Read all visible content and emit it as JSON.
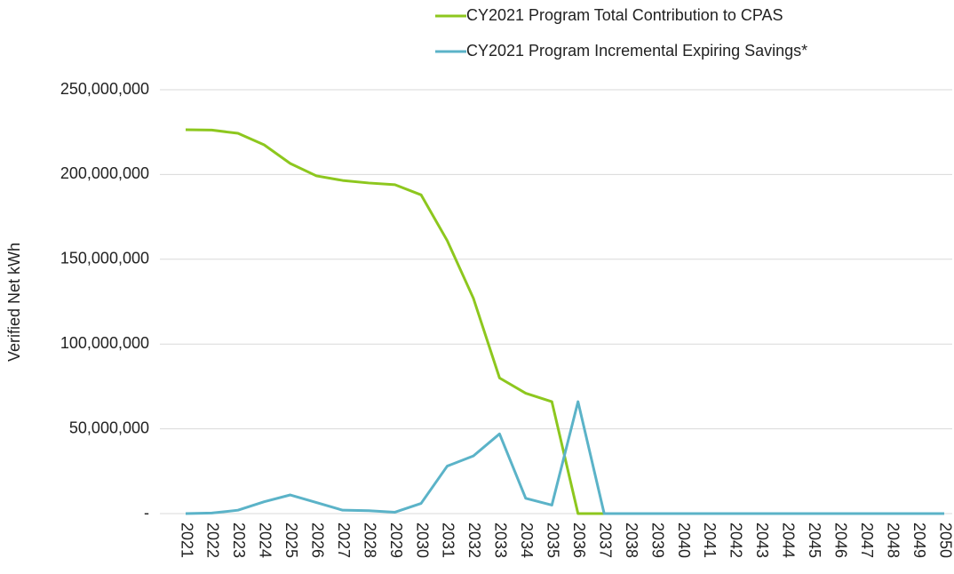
{
  "chart_data": {
    "type": "line",
    "y_label": "Verified Net kWh",
    "categories": [
      "2021",
      "2022",
      "2023",
      "2024",
      "2025",
      "2026",
      "2027",
      "2028",
      "2029",
      "2030",
      "2031",
      "2032",
      "2033",
      "2034",
      "2035",
      "2036",
      "2037",
      "2038",
      "2039",
      "2040",
      "2041",
      "2042",
      "2043",
      "2044",
      "2045",
      "2046",
      "2047",
      "2048",
      "2049",
      "2050"
    ],
    "series": [
      {
        "name": "CY2021 Program Total Contribution to CPAS",
        "color": "#8dc71e",
        "values": [
          226400000,
          226200000,
          224300000,
          217500000,
          206500000,
          199200000,
          196500000,
          195000000,
          194000000,
          188000000,
          161000000,
          127000000,
          80000000,
          71000000,
          66000000,
          0,
          0,
          0,
          0,
          0,
          0,
          0,
          0,
          0,
          0,
          0,
          0,
          0,
          0,
          0
        ]
      },
      {
        "name": "CY2021 Program Incremental Expiring Savings*",
        "color": "#5bb3c8",
        "values": [
          0,
          300000,
          2000000,
          7000000,
          11000000,
          6500000,
          2000000,
          1700000,
          800000,
          6000000,
          28000000,
          34000000,
          47000000,
          9000000,
          5000000,
          66000000,
          0,
          0,
          0,
          0,
          0,
          0,
          0,
          0,
          0,
          0,
          0,
          0,
          0,
          0
        ]
      }
    ],
    "ylim": [
      0,
      250000000
    ],
    "yticks": [
      {
        "value": 0,
        "label": "-"
      },
      {
        "value": 50000000,
        "label": "50,000,000"
      },
      {
        "value": 100000000,
        "label": "100,000,000"
      },
      {
        "value": 150000000,
        "label": "150,000,000"
      },
      {
        "value": 200000000,
        "label": "200,000,000"
      },
      {
        "value": 250000000,
        "label": "250,000,000"
      }
    ],
    "grid": true,
    "legend": "top"
  }
}
